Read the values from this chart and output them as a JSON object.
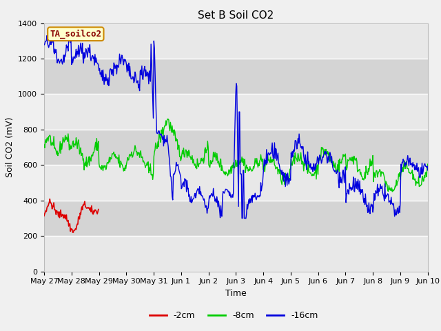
{
  "title": "Set B Soil CO2",
  "ylabel": "Soil CO2 (mV)",
  "xlabel": "Time",
  "annotation": "TA_soilco2",
  "x_tick_labels": [
    "May 27",
    "May 28",
    "May 29",
    "May 30",
    "May 31",
    "Jun 1",
    "Jun 2",
    "Jun 3",
    "Jun 4",
    "Jun 5",
    "Jun 6",
    "Jun 7",
    "Jun 8",
    "Jun 9",
    "Jun 10"
  ],
  "ylim": [
    0,
    1400
  ],
  "yticks": [
    0,
    200,
    400,
    600,
    800,
    1000,
    1200,
    1400
  ],
  "legend_labels": [
    "-2cm",
    "-8cm",
    "-16cm"
  ],
  "legend_colors": [
    "#dd0000",
    "#00cc00",
    "#0000dd"
  ],
  "plot_bg_color": "#e8e8e8",
  "fig_bg_color": "#f0f0f0",
  "band_colors": [
    "#e8e8e8",
    "#d8d8d8"
  ],
  "line_colors": [
    "#dd0000",
    "#00cc00",
    "#0000dd"
  ],
  "title_fontsize": 11,
  "axis_label_fontsize": 9,
  "tick_fontsize": 8,
  "annotation_facecolor": "#ffffcc",
  "annotation_edgecolor": "#cc8800",
  "annotation_textcolor": "#880000"
}
